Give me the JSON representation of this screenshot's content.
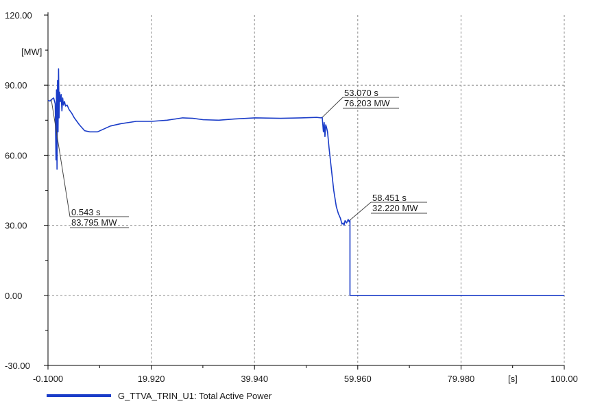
{
  "chart_data": {
    "type": "line",
    "ylabel": "[MW]",
    "xlabel": "[s]",
    "xlim": [
      -0.1,
      100.0
    ],
    "ylim": [
      -30.0,
      120.0
    ],
    "x_ticks": [
      -0.1,
      19.92,
      39.94,
      59.96,
      79.98,
      100.0
    ],
    "x_tick_labels": [
      "-0.1000",
      "19.920",
      "39.940",
      "59.960",
      "79.980",
      "100.00"
    ],
    "y_ticks": [
      -30,
      0,
      30,
      60,
      90,
      120
    ],
    "y_tick_labels": [
      "-30.00",
      "0.00",
      "30.00",
      "60.00",
      "90.00",
      "120.00"
    ],
    "grid": true,
    "legend_position": "bottom-left",
    "series_color": "#1a3cc8",
    "series": [
      {
        "name": "G_TTVA_TRIN_U1: Total Active Power",
        "x": [
          -0.1,
          0.3,
          0.543,
          1.0,
          1.3,
          1.45,
          1.55,
          1.65,
          1.75,
          1.85,
          1.95,
          2.05,
          2.15,
          2.3,
          2.45,
          2.6,
          2.75,
          2.9,
          3.1,
          3.3,
          3.6,
          4.0,
          4.5,
          5.0,
          6.0,
          7.0,
          8.0,
          9.5,
          12.0,
          14.0,
          17.0,
          20.0,
          23.0,
          26.0,
          28.0,
          30.0,
          33.0,
          36.0,
          40.0,
          45.0,
          49.0,
          52.0,
          52.8,
          53.07,
          53.3,
          53.45,
          53.6,
          53.75,
          53.9,
          54.1,
          54.4,
          54.8,
          55.3,
          55.8,
          56.2,
          56.6,
          56.9,
          57.1,
          57.3,
          57.5,
          57.8,
          58.1,
          58.3,
          58.451,
          58.452,
          60.0,
          70.0,
          80.0,
          90.0,
          100.0
        ],
        "y": [
          83.5,
          83.2,
          83.795,
          84.5,
          82.0,
          58.0,
          88.0,
          54.0,
          92.0,
          70.0,
          97.0,
          76.0,
          87.0,
          83.0,
          86.0,
          79.0,
          84.5,
          81.5,
          83.0,
          81.0,
          81.5,
          79.5,
          78.0,
          76.0,
          73.0,
          70.5,
          70.0,
          70.0,
          72.5,
          73.5,
          74.5,
          74.5,
          75.0,
          76.0,
          75.8,
          75.2,
          75.0,
          75.5,
          76.0,
          75.8,
          76.0,
          76.2,
          76.0,
          76.203,
          70.0,
          74.0,
          68.0,
          73.0,
          72.0,
          70.0,
          63.0,
          55.0,
          45.0,
          38.0,
          35.0,
          33.0,
          30.5,
          31.0,
          30.0,
          32.0,
          31.0,
          32.5,
          31.5,
          32.22,
          0.0,
          0.0,
          0.0,
          0.0,
          0.0,
          0.0
        ]
      }
    ],
    "annotations": [
      {
        "x": 0.543,
        "y": 83.795,
        "time_label": "0.543 s",
        "value_label": "83.795 MW"
      },
      {
        "x": 53.07,
        "y": 76.203,
        "time_label": "53.070 s",
        "value_label": "76.203 MW"
      },
      {
        "x": 58.451,
        "y": 32.22,
        "time_label": "58.451 s",
        "value_label": "32.220 MW"
      }
    ]
  }
}
